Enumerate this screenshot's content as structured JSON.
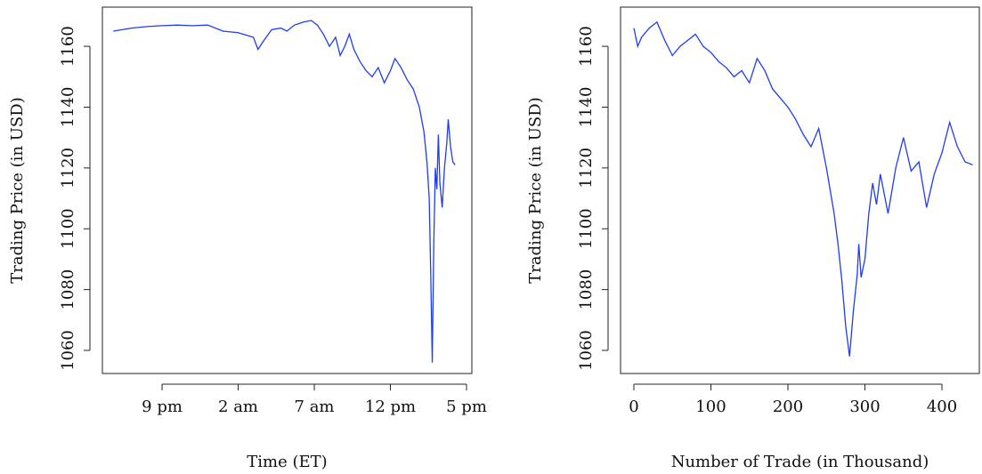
{
  "chart_data": [
    {
      "type": "line",
      "xlabel": "Time (ET)",
      "ylabel": "Trading Price (in USD)",
      "x": [
        17.8,
        19,
        20,
        21,
        22,
        23,
        24,
        25,
        26,
        27,
        27.3,
        27.7,
        28.2,
        28.8,
        29.2,
        29.7,
        30.3,
        30.8,
        31.2,
        31.6,
        32,
        32.4,
        32.7,
        33,
        33.3,
        33.6,
        34,
        34.4,
        34.8,
        35.2,
        35.6,
        36,
        36.3,
        36.7,
        37.1,
        37.5,
        37.9,
        38.2,
        38.4,
        38.55,
        38.65,
        38.75,
        38.85,
        38.95,
        39.05,
        39.15,
        39.25,
        39.4,
        39.55,
        39.7,
        39.8,
        39.95,
        40.1,
        40.25
      ],
      "series": [
        {
          "color": "#1f3cf0",
          "values": [
            1165,
            1166,
            1166.5,
            1166.8,
            1167,
            1166.8,
            1167,
            1165,
            1164.5,
            1163,
            1159,
            1162,
            1165.5,
            1166,
            1165,
            1167,
            1168,
            1168.5,
            1167,
            1164,
            1160,
            1163,
            1157,
            1160,
            1164,
            1159,
            1155,
            1152,
            1150,
            1153,
            1148,
            1152,
            1156,
            1153,
            1149,
            1146,
            1140,
            1132,
            1122,
            1110,
            1085,
            1056,
            1095,
            1120,
            1113,
            1131,
            1115,
            1107,
            1120,
            1128,
            1136,
            1127,
            1122,
            1121
          ]
        }
      ],
      "xlim": [
        17.08,
        41.35
      ],
      "xticks": [
        {
          "value": 21,
          "label": "9 pm"
        },
        {
          "value": 26,
          "label": "2 am"
        },
        {
          "value": 31,
          "label": "7 am"
        },
        {
          "value": 36,
          "label": "12 pm"
        },
        {
          "value": 41,
          "label": "5 pm"
        }
      ],
      "ylim": [
        1052.4,
        1172.9
      ],
      "yticks": [
        1060,
        1080,
        1100,
        1120,
        1140,
        1160
      ]
    },
    {
      "type": "line",
      "xlabel": "Number of Trade (in Thousand)",
      "ylabel": "Trading Price (in USD)",
      "x": [
        0,
        5,
        10,
        20,
        30,
        40,
        50,
        60,
        70,
        80,
        90,
        100,
        110,
        120,
        130,
        140,
        150,
        160,
        170,
        180,
        190,
        200,
        210,
        220,
        230,
        240,
        250,
        260,
        265,
        270,
        275,
        280,
        285,
        290,
        292,
        295,
        300,
        305,
        310,
        315,
        320,
        330,
        340,
        350,
        360,
        370,
        380,
        390,
        400,
        410,
        420,
        430,
        440
      ],
      "series": [
        {
          "color": "#1f3cf0",
          "values": [
            1166,
            1160,
            1163,
            1166,
            1168,
            1162,
            1157,
            1160,
            1162,
            1164,
            1160,
            1158,
            1155,
            1153,
            1150,
            1152,
            1148,
            1156,
            1152,
            1146,
            1143,
            1140,
            1136,
            1131,
            1127,
            1133,
            1120,
            1105,
            1095,
            1083,
            1068,
            1058,
            1073,
            1085,
            1095,
            1084,
            1090,
            1105,
            1115,
            1108,
            1118,
            1105,
            1120,
            1130,
            1119,
            1122,
            1107,
            1118,
            1125,
            1135,
            1127,
            1122,
            1121
          ]
        }
      ],
      "xlim": [
        -17.3,
        448.5
      ],
      "xticks": [
        0,
        100,
        200,
        300,
        400
      ],
      "ylim": [
        1052.4,
        1172.9
      ],
      "yticks": [
        1060,
        1080,
        1100,
        1120,
        1140,
        1160
      ]
    }
  ]
}
